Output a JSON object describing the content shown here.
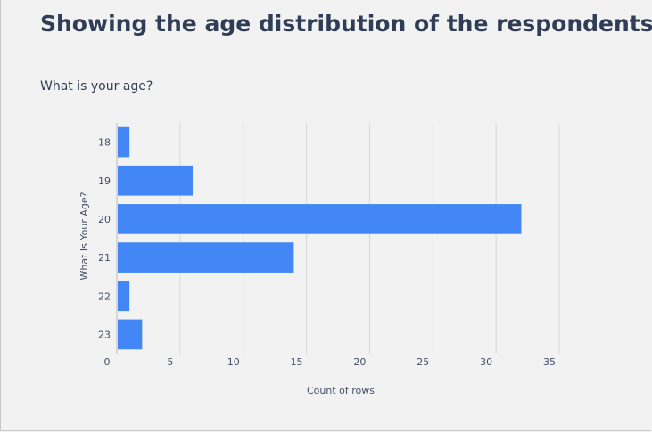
{
  "title": "Showing the age distribution of the respondents.",
  "subtitle": "What is your age?",
  "chart_data": {
    "type": "bar",
    "orientation": "horizontal",
    "categories": [
      "18",
      "19",
      "20",
      "21",
      "22",
      "23"
    ],
    "values": [
      1,
      6,
      32,
      14,
      1,
      2
    ],
    "xlabel": "Count of rows",
    "ylabel": "What Is Your Age?",
    "xlim": [
      0,
      35
    ],
    "xticks": [
      0,
      5,
      10,
      15,
      20,
      25,
      30,
      35
    ],
    "grid": true,
    "bar_color": "#4287f5"
  }
}
